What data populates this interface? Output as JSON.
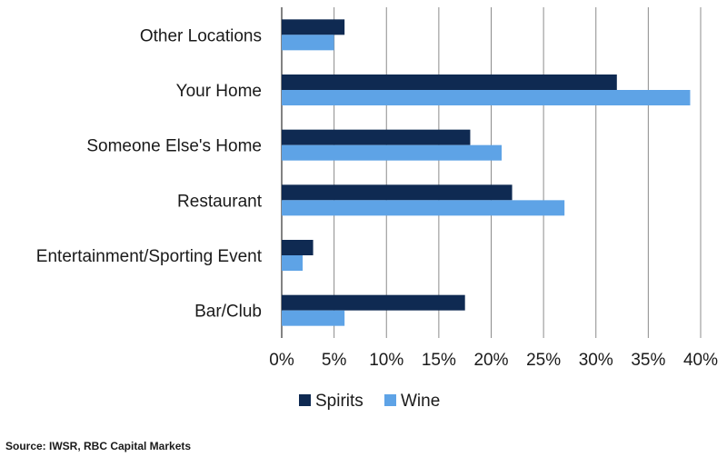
{
  "chart_data": {
    "type": "bar",
    "orientation": "horizontal",
    "categories": [
      "Other Locations",
      "Your Home",
      "Someone Else's Home",
      "Restaurant",
      "Entertainment/Sporting Event",
      "Bar/Club"
    ],
    "series": [
      {
        "name": "Spirits",
        "color": "#0f2a52",
        "values": [
          6,
          32,
          18,
          22,
          3,
          17.5
        ]
      },
      {
        "name": "Wine",
        "color": "#5ea3e6",
        "values": [
          5,
          39,
          21,
          27,
          2,
          6
        ]
      }
    ],
    "x_ticks": [
      "0%",
      "5%",
      "10%",
      "15%",
      "20%",
      "25%",
      "30%",
      "35%",
      "40%"
    ],
    "xlim": [
      0,
      40
    ],
    "unit": "%",
    "grid": "vertical",
    "legend_position": "bottom"
  },
  "source": "Source: IWSR, RBC Capital Markets",
  "colors": {
    "grid": "#8c8c8c",
    "axis": "#595959"
  }
}
